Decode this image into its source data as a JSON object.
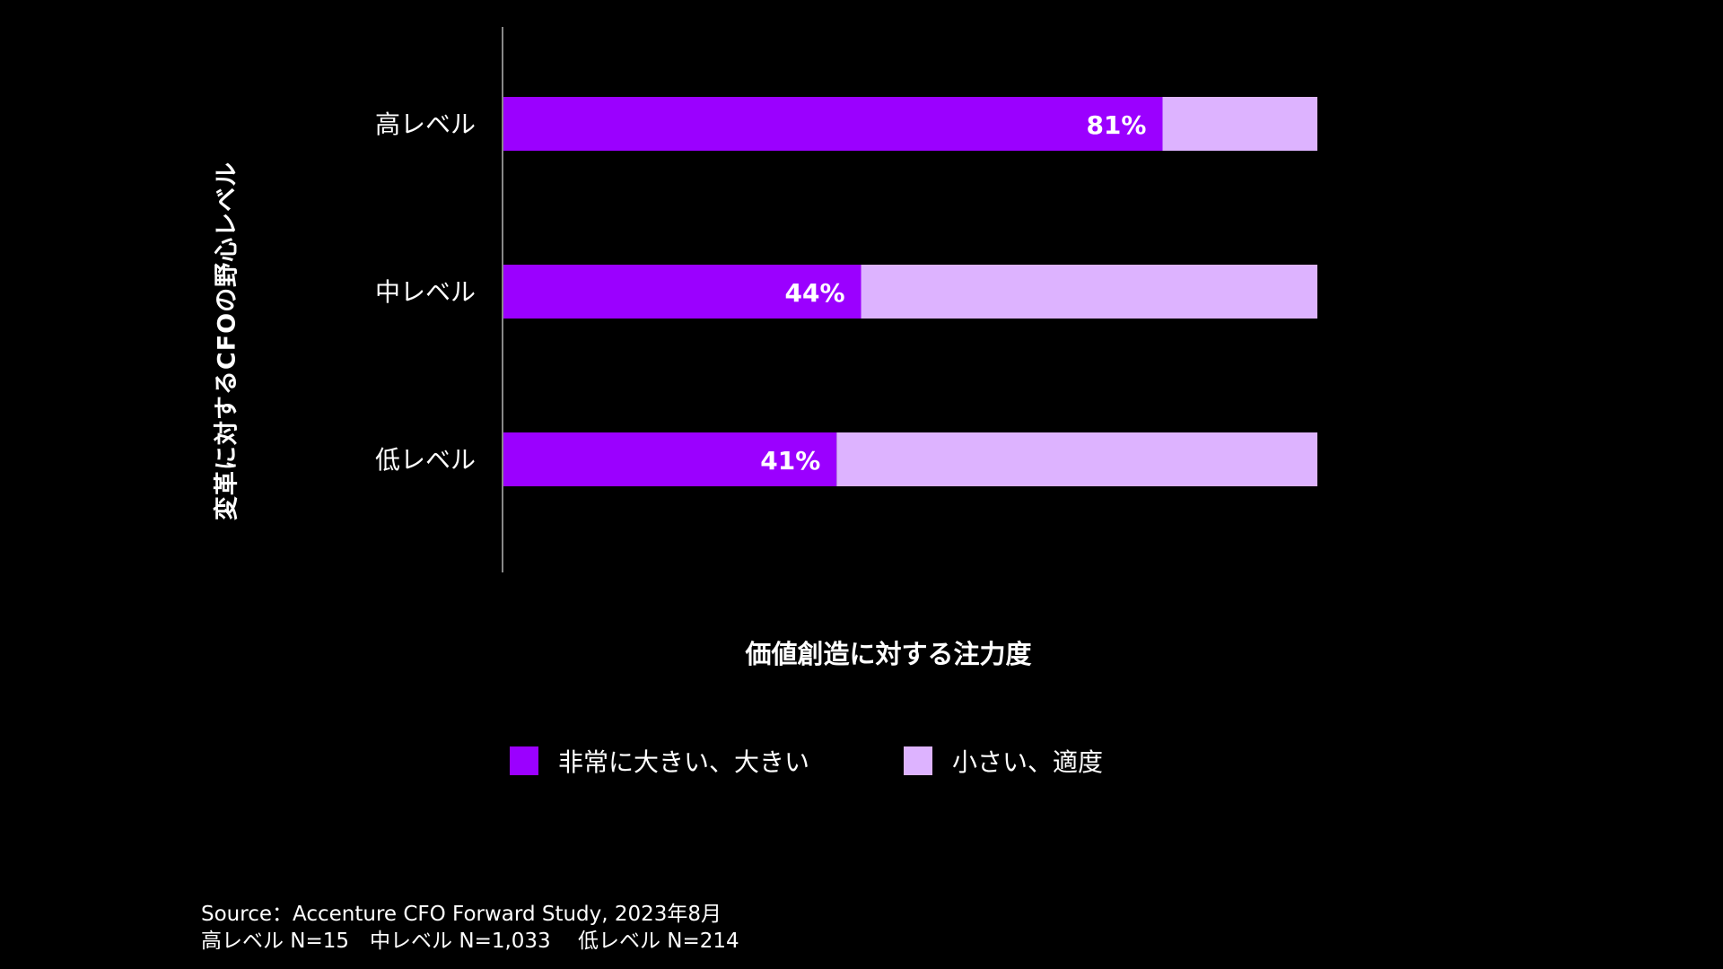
{
  "chart_data": {
    "type": "bar",
    "orientation": "horizontal",
    "stacked": true,
    "categories": [
      "高レベル",
      "中レベル",
      "低レベル"
    ],
    "series": [
      {
        "name": "非常に大きい、大きい",
        "color": "#9B00FF",
        "values": [
          81,
          44,
          41
        ],
        "data_labels": [
          "81%",
          "44%",
          "41%"
        ]
      },
      {
        "name": "小さい、適度",
        "color": "#DDB3FF",
        "values": [
          19,
          56,
          59
        ]
      }
    ],
    "xlim": [
      0,
      100
    ],
    "xlabel": "価値創造に対する注力度",
    "ylabel": "変革に対するCFOの野心レベル",
    "grid": false,
    "legend_position": "bottom"
  },
  "footer": {
    "source": "Source：Accenture CFO Forward Study, 2023年8月",
    "sample": "高レベル N=15　中レベル N=1,033　 低レベル N=214"
  },
  "colors": {
    "background": "#000000",
    "text": "#FFFFFF",
    "axis": "#888888"
  }
}
